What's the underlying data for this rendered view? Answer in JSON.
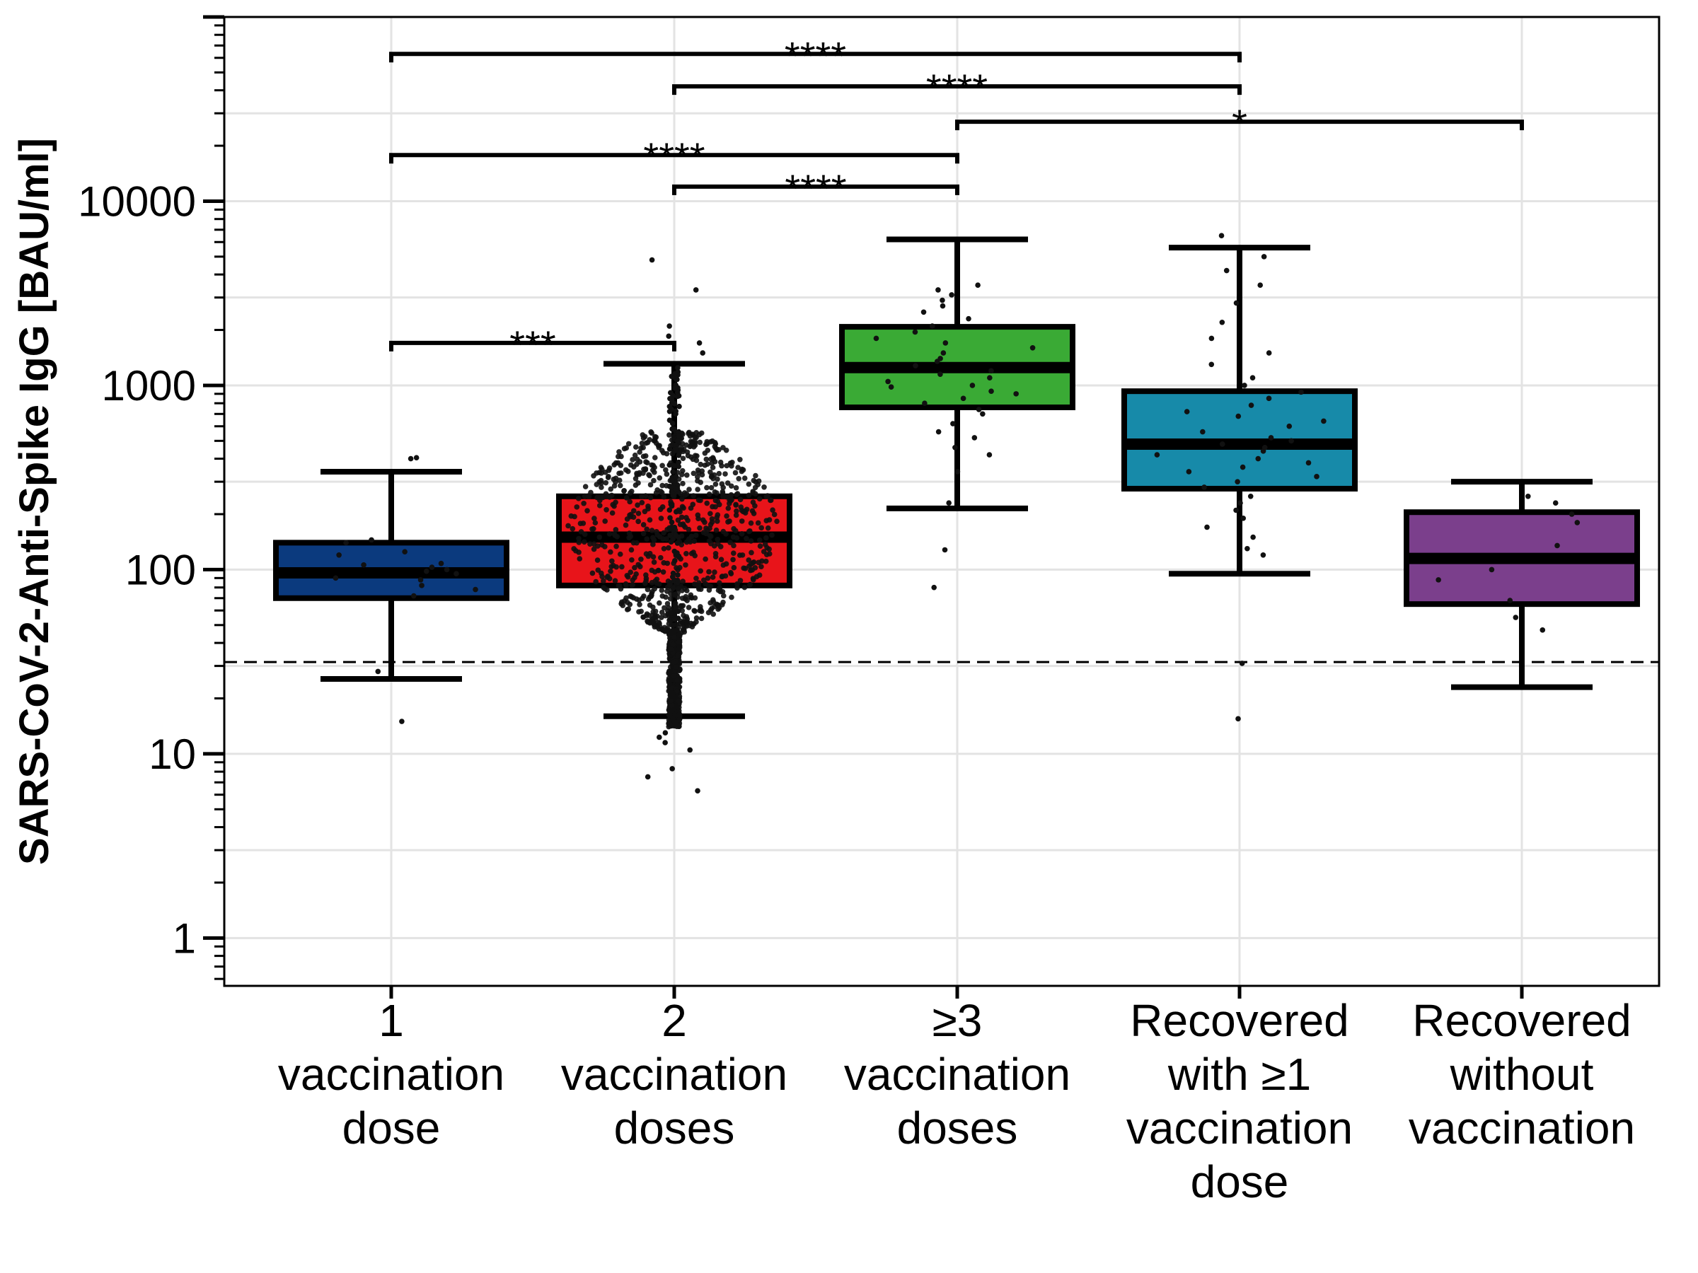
{
  "chart_data": {
    "type": "box",
    "ylabel": "SARS-CoV-2-Anti-Spike IgG [BAU/ml]",
    "xlabel": "",
    "yscale": "log",
    "ylim": [
      0.55,
      100000
    ],
    "yticks": [
      1,
      10,
      100,
      1000,
      10000
    ],
    "ytick_labels": [
      "1",
      "10",
      "100",
      "1000",
      "10000"
    ],
    "grid": true,
    "threshold_line": 31.5,
    "groups": [
      {
        "label_lines": [
          "1",
          "vaccination",
          "dose"
        ],
        "color": "#0b3a7e",
        "whisker_low": 25.5,
        "q1": 70,
        "median": 96,
        "q3": 140,
        "whisker_high": 340,
        "points": [
          15,
          28,
          72,
          78,
          82,
          88,
          90,
          95,
          98,
          100,
          103,
          106,
          108,
          120,
          125,
          140,
          145,
          400,
          405
        ]
      },
      {
        "label_lines": [
          "2",
          "vaccination",
          "doses"
        ],
        "color": "#e8141a",
        "whisker_low": 16,
        "q1": 82,
        "median": 150,
        "q3": 250,
        "whisker_high": 1310,
        "points": [
          6.3,
          7.5,
          8.3,
          10.5,
          11.5,
          12.3,
          13,
          1500,
          1700,
          1850,
          2100,
          3300,
          4800
        ]
      },
      {
        "label_lines": [
          "≥3",
          "vaccination",
          "doses"
        ],
        "color": "#3aaa35",
        "whisker_low": 215,
        "q1": 760,
        "median": 1250,
        "q3": 2080,
        "whisker_high": 6200,
        "points": [
          80,
          128,
          230,
          340,
          420,
          460,
          520,
          560,
          620,
          700,
          740,
          800,
          850,
          900,
          930,
          980,
          1000,
          1050,
          1100,
          1150,
          1200,
          1280,
          1350,
          1400,
          1500,
          1600,
          1700,
          1800,
          1950,
          2100,
          2300,
          2500,
          2700,
          2900,
          3100,
          3300,
          3500
        ]
      },
      {
        "label_lines": [
          "Recovered",
          "with ≥1",
          "vaccination",
          "dose"
        ],
        "color": "#178aa9",
        "whisker_low": 95,
        "q1": 275,
        "median": 480,
        "q3": 930,
        "whisker_high": 5600,
        "points": [
          15.5,
          31,
          120,
          130,
          150,
          170,
          190,
          210,
          230,
          250,
          280,
          300,
          320,
          340,
          360,
          380,
          400,
          420,
          440,
          460,
          480,
          500,
          520,
          560,
          600,
          640,
          680,
          720,
          780,
          850,
          920,
          1000,
          1100,
          1300,
          1500,
          1800,
          2200,
          2800,
          3500,
          4200,
          5000,
          6500
        ]
      },
      {
        "label_lines": [
          "Recovered",
          "without",
          "vaccination"
        ],
        "color": "#7b3f8c",
        "whisker_low": 23,
        "q1": 65,
        "median": 115,
        "q3": 205,
        "whisker_high": 300,
        "points": [
          47,
          55,
          68,
          88,
          100,
          135,
          180,
          200,
          230,
          250
        ]
      }
    ],
    "significance": [
      {
        "from": 0,
        "to": 1,
        "y": 1700,
        "label": "***"
      },
      {
        "from": 1,
        "to": 2,
        "y": 12000,
        "label": "****"
      },
      {
        "from": 0,
        "to": 2,
        "y": 17800,
        "label": "****"
      },
      {
        "from": 2,
        "to": 4,
        "y": 27000,
        "label": "*"
      },
      {
        "from": 1,
        "to": 3,
        "y": 42000,
        "label": "****"
      },
      {
        "from": 0,
        "to": 3,
        "y": 63000,
        "label": "****"
      }
    ]
  }
}
